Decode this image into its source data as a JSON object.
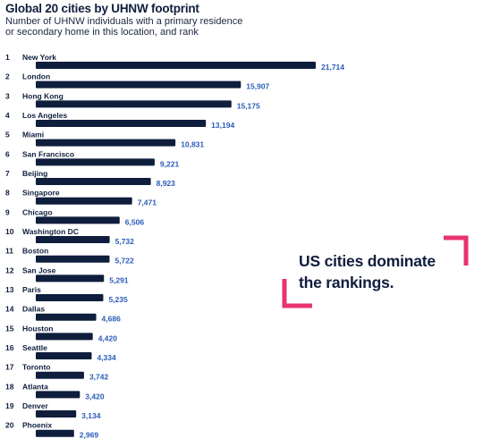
{
  "title": "Global 20 cities by UHNW footprint",
  "subtitle_line1": "Number of UHNW individuals with a primary residence",
  "subtitle_line2": "or secondary home in this location, and rank",
  "callout_line1": "US cities dominate",
  "callout_line2": "the rankings.",
  "colors": {
    "bar": "#0f1e3d",
    "value_label": "#2b5cb8",
    "accent": "#e8336e"
  },
  "chart_data": {
    "type": "bar",
    "orientation": "horizontal",
    "title": "Global 20 cities by UHNW footprint",
    "ranks": [
      "1",
      "2",
      "3",
      "4",
      "5",
      "6",
      "7",
      "8",
      "9",
      "10",
      "11",
      "12",
      "13",
      "14",
      "15",
      "16",
      "17",
      "18",
      "19",
      "20"
    ],
    "categories": [
      "New York",
      "London",
      "Hong Kong",
      "Los Angeles",
      "Miami",
      "San Francisco",
      "Beijing",
      "Singapore",
      "Chicago",
      "Washington DC",
      "Boston",
      "San Jose",
      "Paris",
      "Dallas",
      "Houston",
      "Seattle",
      "Toronto",
      "Atlanta",
      "Denver",
      "Phoenix"
    ],
    "values": [
      21714,
      15907,
      15175,
      13194,
      10831,
      9221,
      8923,
      7471,
      6506,
      5732,
      5722,
      5291,
      5235,
      4686,
      4420,
      4334,
      3742,
      3420,
      3134,
      2969
    ],
    "value_labels": [
      "21,714",
      "15,907",
      "15,175",
      "13,194",
      "10,831",
      "9,221",
      "8,923",
      "7,471",
      "6,506",
      "5,732",
      "5,722",
      "5,291",
      "5,235",
      "4,686",
      "4,420",
      "4,334",
      "3,742",
      "3,420",
      "3,134",
      "2,969"
    ]
  }
}
